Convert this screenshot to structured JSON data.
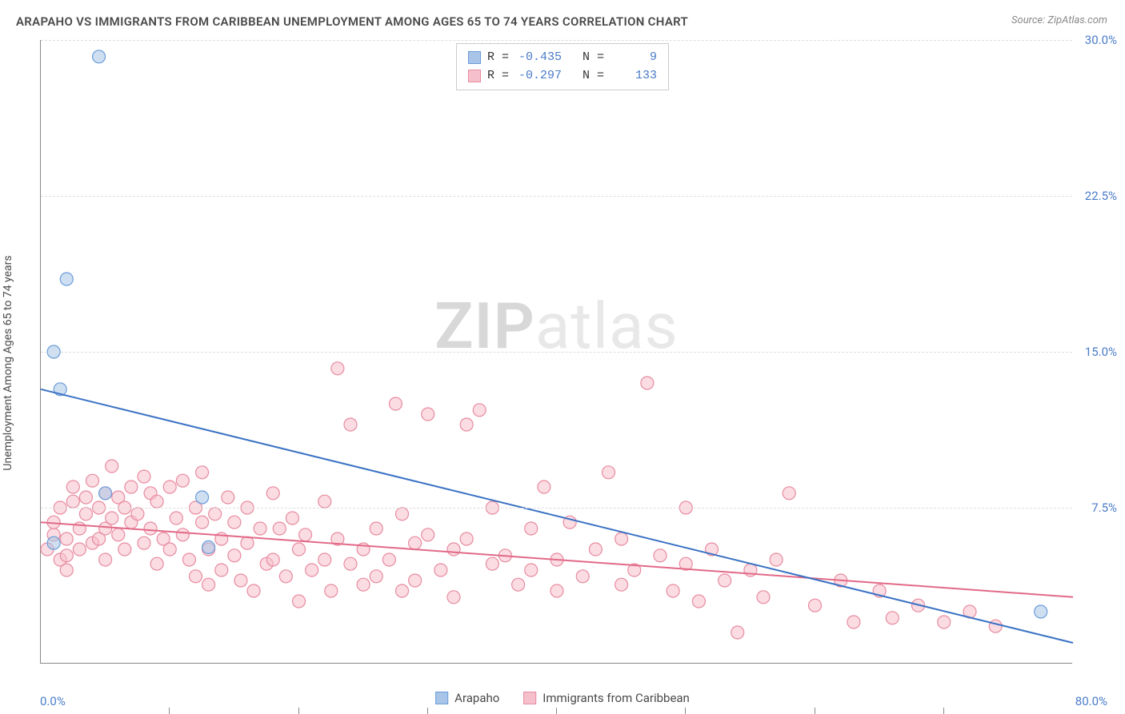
{
  "title": "ARAPAHO VS IMMIGRANTS FROM CARIBBEAN UNEMPLOYMENT AMONG AGES 65 TO 74 YEARS CORRELATION CHART",
  "source": "Source: ZipAtlas.com",
  "y_axis_label": "Unemployment Among Ages 65 to 74 years",
  "watermark_bold": "ZIP",
  "watermark_light": "atlas",
  "x_range": [
    0,
    80
  ],
  "y_range": [
    0,
    30
  ],
  "y_ticks": [
    7.5,
    15.0,
    22.5,
    30.0
  ],
  "y_tick_labels": [
    "7.5%",
    "15.0%",
    "22.5%",
    "30.0%"
  ],
  "x_ticks": [
    10,
    20,
    30,
    40,
    50,
    60,
    70
  ],
  "x_min_label": "0.0%",
  "x_max_label": "80.0%",
  "grid_color": "#dddddd",
  "axis_color": "#888888",
  "tick_label_color": "#4a7bc8",
  "series": {
    "arapaho": {
      "label": "Arapaho",
      "color_fill": "#a8c4e8",
      "color_stroke": "#6a9cd8",
      "line_color": "#3a72c4",
      "marker_radius": 8,
      "R": "-0.435",
      "N": "9",
      "trend": {
        "x1": 0,
        "y1": 13.2,
        "x2": 80,
        "y2": 1.0
      },
      "points": [
        [
          4.5,
          29.2
        ],
        [
          2.0,
          18.5
        ],
        [
          1.0,
          15.0
        ],
        [
          1.5,
          13.2
        ],
        [
          12.5,
          8.0
        ],
        [
          5.0,
          8.2
        ],
        [
          13.0,
          5.6
        ],
        [
          1.0,
          5.8
        ],
        [
          77.5,
          2.5
        ]
      ]
    },
    "caribbean": {
      "label": "Immigrants from Caribbean",
      "color_fill": "#f5c0cb",
      "color_stroke": "#e88ba0",
      "line_color": "#e26a88",
      "marker_radius": 8,
      "R": "-0.297",
      "N": "133",
      "trend": {
        "x1": 0,
        "y1": 6.8,
        "x2": 80,
        "y2": 3.2
      },
      "points": [
        [
          0.5,
          5.5
        ],
        [
          1,
          6.2
        ],
        [
          1,
          6.8
        ],
        [
          1.5,
          5.0
        ],
        [
          1.5,
          7.5
        ],
        [
          2,
          6.0
        ],
        [
          2,
          5.2
        ],
        [
          2,
          4.5
        ],
        [
          2.5,
          7.8
        ],
        [
          2.5,
          8.5
        ],
        [
          3,
          5.5
        ],
        [
          3,
          6.5
        ],
        [
          3.5,
          8.0
        ],
        [
          3.5,
          7.2
        ],
        [
          4,
          5.8
        ],
        [
          4,
          8.8
        ],
        [
          4.5,
          6.0
        ],
        [
          4.5,
          7.5
        ],
        [
          5,
          8.2
        ],
        [
          5,
          6.5
        ],
        [
          5,
          5.0
        ],
        [
          5.5,
          9.5
        ],
        [
          5.5,
          7.0
        ],
        [
          6,
          8.0
        ],
        [
          6,
          6.2
        ],
        [
          6.5,
          7.5
        ],
        [
          6.5,
          5.5
        ],
        [
          7,
          8.5
        ],
        [
          7,
          6.8
        ],
        [
          7.5,
          7.2
        ],
        [
          8,
          9.0
        ],
        [
          8,
          5.8
        ],
        [
          8.5,
          8.2
        ],
        [
          8.5,
          6.5
        ],
        [
          9,
          7.8
        ],
        [
          9,
          4.8
        ],
        [
          9.5,
          6.0
        ],
        [
          10,
          8.5
        ],
        [
          10,
          5.5
        ],
        [
          10.5,
          7.0
        ],
        [
          11,
          6.2
        ],
        [
          11,
          8.8
        ],
        [
          11.5,
          5.0
        ],
        [
          12,
          7.5
        ],
        [
          12,
          4.2
        ],
        [
          12.5,
          6.8
        ],
        [
          12.5,
          9.2
        ],
        [
          13,
          5.5
        ],
        [
          13,
          3.8
        ],
        [
          13.5,
          7.2
        ],
        [
          14,
          6.0
        ],
        [
          14,
          4.5
        ],
        [
          14.5,
          8.0
        ],
        [
          15,
          5.2
        ],
        [
          15,
          6.8
        ],
        [
          15.5,
          4.0
        ],
        [
          16,
          7.5
        ],
        [
          16,
          5.8
        ],
        [
          16.5,
          3.5
        ],
        [
          17,
          6.5
        ],
        [
          17.5,
          4.8
        ],
        [
          18,
          8.2
        ],
        [
          18,
          5.0
        ],
        [
          18.5,
          6.5
        ],
        [
          19,
          4.2
        ],
        [
          19.5,
          7.0
        ],
        [
          20,
          5.5
        ],
        [
          20,
          3.0
        ],
        [
          20.5,
          6.2
        ],
        [
          21,
          4.5
        ],
        [
          22,
          7.8
        ],
        [
          22,
          5.0
        ],
        [
          22.5,
          3.5
        ],
        [
          23,
          14.2
        ],
        [
          23,
          6.0
        ],
        [
          24,
          4.8
        ],
        [
          24,
          11.5
        ],
        [
          25,
          5.5
        ],
        [
          25,
          3.8
        ],
        [
          26,
          6.5
        ],
        [
          26,
          4.2
        ],
        [
          27,
          5.0
        ],
        [
          27.5,
          12.5
        ],
        [
          28,
          3.5
        ],
        [
          28,
          7.2
        ],
        [
          29,
          5.8
        ],
        [
          29,
          4.0
        ],
        [
          30,
          12.0
        ],
        [
          30,
          6.2
        ],
        [
          31,
          4.5
        ],
        [
          32,
          5.5
        ],
        [
          32,
          3.2
        ],
        [
          33,
          11.5
        ],
        [
          33,
          6.0
        ],
        [
          34,
          12.2
        ],
        [
          35,
          4.8
        ],
        [
          35,
          7.5
        ],
        [
          36,
          5.2
        ],
        [
          37,
          3.8
        ],
        [
          38,
          6.5
        ],
        [
          38,
          4.5
        ],
        [
          39,
          8.5
        ],
        [
          40,
          5.0
        ],
        [
          40,
          3.5
        ],
        [
          41,
          6.8
        ],
        [
          42,
          4.2
        ],
        [
          43,
          5.5
        ],
        [
          44,
          9.2
        ],
        [
          45,
          3.8
        ],
        [
          45,
          6.0
        ],
        [
          46,
          4.5
        ],
        [
          47,
          13.5
        ],
        [
          48,
          5.2
        ],
        [
          49,
          3.5
        ],
        [
          50,
          4.8
        ],
        [
          50,
          7.5
        ],
        [
          51,
          3.0
        ],
        [
          52,
          5.5
        ],
        [
          53,
          4.0
        ],
        [
          54,
          1.5
        ],
        [
          55,
          4.5
        ],
        [
          56,
          3.2
        ],
        [
          57,
          5.0
        ],
        [
          58,
          8.2
        ],
        [
          60,
          2.8
        ],
        [
          62,
          4.0
        ],
        [
          63,
          2.0
        ],
        [
          65,
          3.5
        ],
        [
          66,
          2.2
        ],
        [
          68,
          2.8
        ],
        [
          70,
          2.0
        ],
        [
          72,
          2.5
        ],
        [
          74,
          1.8
        ]
      ]
    }
  },
  "legend": [
    {
      "label": "Arapaho",
      "fill": "#a8c4e8",
      "stroke": "#6a9cd8"
    },
    {
      "label": "Immigrants from Caribbean",
      "fill": "#f5c0cb",
      "stroke": "#e88ba0"
    }
  ]
}
